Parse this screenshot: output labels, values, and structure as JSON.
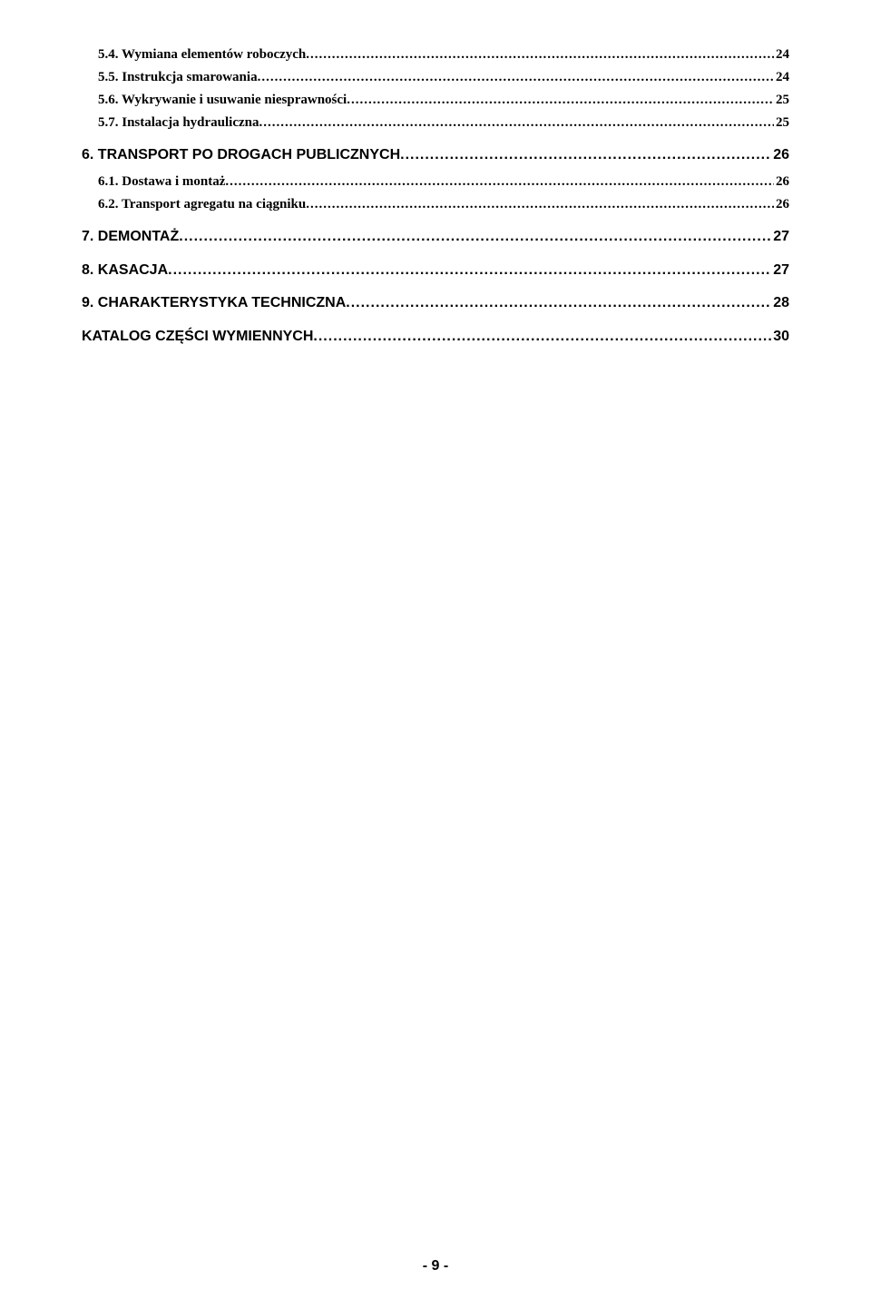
{
  "leader": "............................................................................................................................................................................................................................................................................................",
  "toc": [
    {
      "style": "sub",
      "label": "5.4. Wymiana elementów roboczych",
      "page": "24"
    },
    {
      "style": "sub",
      "label": "5.5. Instrukcja smarowania",
      "page": "24"
    },
    {
      "style": "sub",
      "label": "5.6. Wykrywanie i usuwanie niesprawności",
      "page": "25"
    },
    {
      "style": "sub",
      "label": "5.7. Instalacja hydrauliczna",
      "page": "25"
    },
    {
      "style": "chap",
      "label": "6. TRANSPORT PO DROGACH PUBLICZNYCH",
      "page": "26"
    },
    {
      "style": "sub",
      "label": "6.1. Dostawa i montaż",
      "page": "26"
    },
    {
      "style": "sub",
      "label": "6.2. Transport agregatu na ciągniku",
      "page": "26"
    },
    {
      "style": "chap",
      "label": "7. DEMONTAŻ",
      "page": "27"
    },
    {
      "style": "chap",
      "label": "8. KASACJA",
      "page": "27"
    },
    {
      "style": "chap",
      "label": "9. CHARAKTERYSTYKA TECHNICZNA",
      "page": "28"
    },
    {
      "style": "chap",
      "label": "KATALOG CZĘŚCI WYMIENNYCH",
      "page": "30"
    }
  ],
  "footer": "- 9 -"
}
